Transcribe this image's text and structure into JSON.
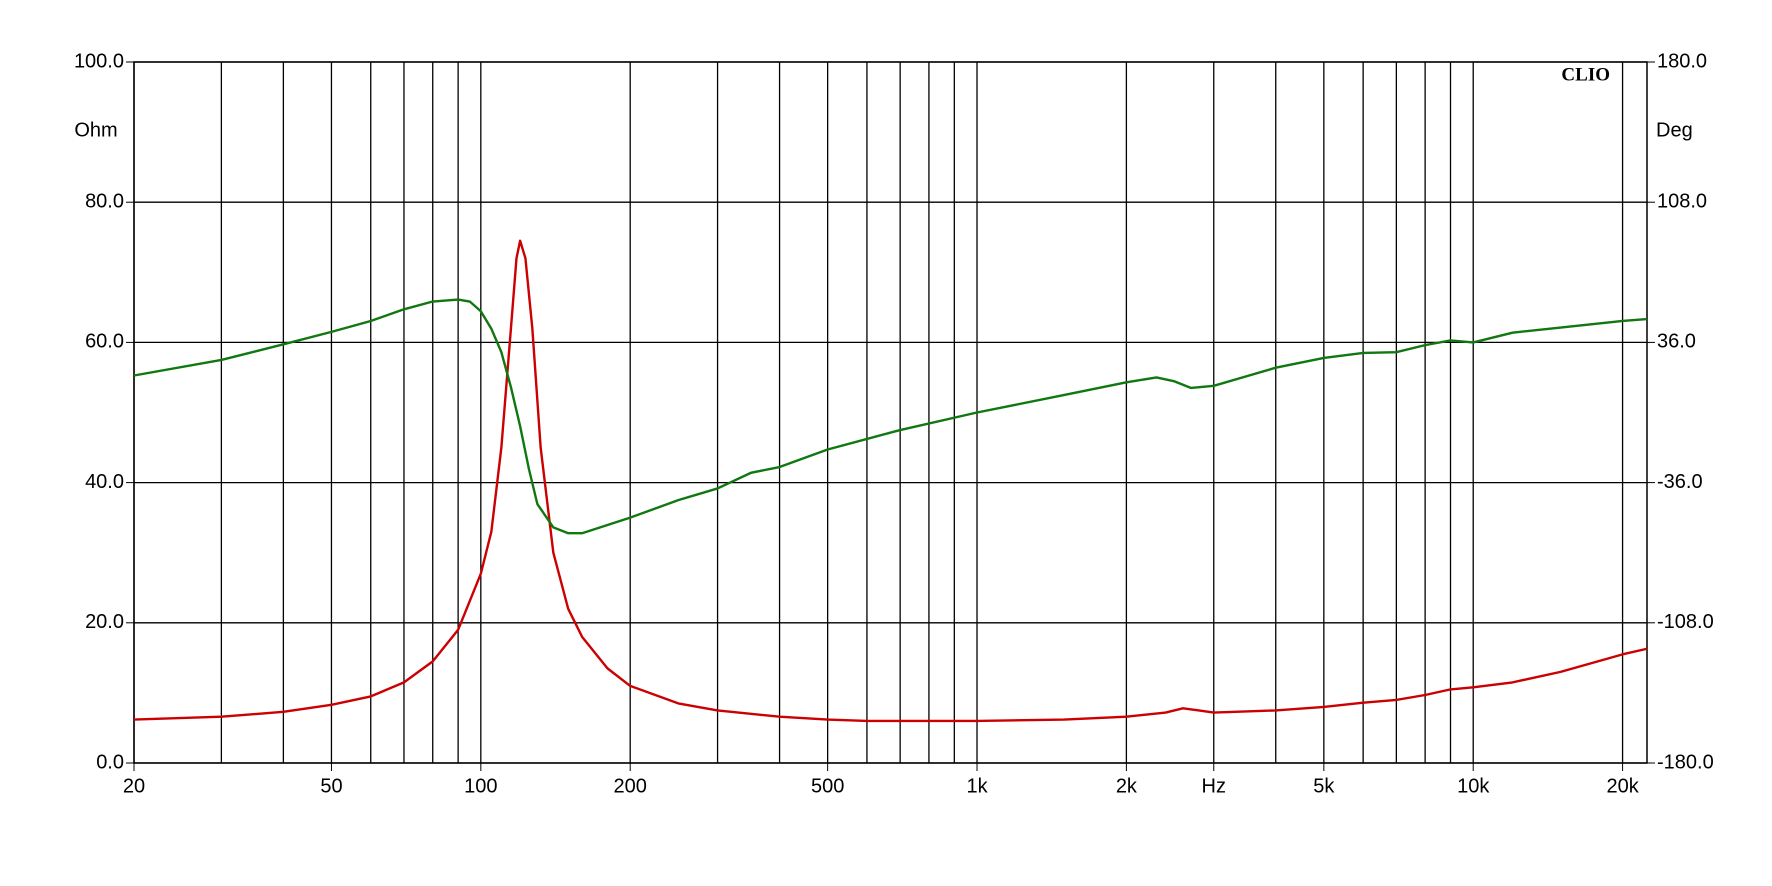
{
  "chart_data": {
    "type": "line",
    "badge": "CLIO",
    "y_label": "Ohm",
    "y2_label": "Deg",
    "xscale": "log",
    "xlim": [
      20,
      22400
    ],
    "xticks": [
      20,
      {
        "value": 50,
        "label": "50"
      },
      100,
      200,
      500,
      {
        "value": 1000,
        "label": "1k"
      },
      {
        "value": 2000,
        "label": "2k"
      },
      {
        "value": 3000,
        "label": "Hz"
      },
      {
        "value": 5000,
        "label": "5k"
      },
      {
        "value": 10000,
        "label": "10k"
      },
      {
        "value": 20000,
        "label": "20k"
      }
    ],
    "xgrid": [
      20,
      30,
      40,
      50,
      60,
      70,
      80,
      90,
      100,
      200,
      300,
      400,
      500,
      600,
      700,
      800,
      900,
      1000,
      2000,
      3000,
      4000,
      5000,
      6000,
      7000,
      8000,
      9000,
      10000,
      20000
    ],
    "ylim": [
      0,
      100
    ],
    "yticks": [
      {
        "value": 0,
        "label": "0.0"
      },
      {
        "value": 20,
        "label": "20.0"
      },
      {
        "value": 40,
        "label": "40.0"
      },
      {
        "value": 60,
        "label": "60.0"
      },
      {
        "value": 80,
        "label": "80.0"
      },
      {
        "value": 100,
        "label": "100.0"
      }
    ],
    "y2lim": [
      -180,
      180
    ],
    "y2ticks": [
      {
        "value": -180,
        "label": "-180.0"
      },
      {
        "value": -108,
        "label": "-108.0"
      },
      {
        "value": -36,
        "label": "-36.0"
      },
      {
        "value": 36,
        "label": "36.0"
      },
      {
        "value": 108,
        "label": "108.0"
      },
      {
        "value": 180,
        "label": "180.0"
      }
    ],
    "grid": true,
    "series": [
      {
        "color": "#cc0000",
        "x": [
          20,
          30,
          40,
          50,
          60,
          70,
          80,
          90,
          100,
          105,
          110,
          115,
          118,
          120,
          123,
          127,
          132,
          140,
          150,
          160,
          180,
          200,
          250,
          300,
          400,
          500,
          600,
          800,
          1000,
          1500,
          2000,
          2400,
          2600,
          2800,
          3000,
          4000,
          5000,
          6000,
          7000,
          8000,
          9000,
          10000,
          12000,
          15000,
          20000,
          22400
        ],
        "values": [
          6.2,
          6.6,
          7.3,
          8.3,
          9.5,
          11.5,
          14.5,
          19,
          27,
          33,
          45,
          62,
          72,
          74.5,
          72,
          62,
          45,
          30,
          22,
          18,
          13.5,
          11,
          8.5,
          7.5,
          6.6,
          6.2,
          6.0,
          6.0,
          6.0,
          6.2,
          6.6,
          7.2,
          7.8,
          7.5,
          7.2,
          7.5,
          8.0,
          8.6,
          9.0,
          9.7,
          10.5,
          10.8,
          11.5,
          13,
          15.5,
          16.3
        ]
      },
      {
        "color": "#117711",
        "axis": "y2",
        "x": [
          20,
          30,
          40,
          50,
          60,
          70,
          80,
          90,
          95,
          100,
          105,
          110,
          115,
          120,
          125,
          130,
          140,
          150,
          160,
          200,
          250,
          300,
          350,
          400,
          500,
          700,
          1000,
          1500,
          2000,
          2300,
          2500,
          2700,
          3000,
          4000,
          5000,
          6000,
          7000,
          8000,
          9000,
          10000,
          12000,
          15000,
          20000,
          22400
        ],
        "values": [
          19,
          27,
          35,
          41.4,
          47,
          53,
          57,
          58,
          57,
          52,
          43,
          31,
          13,
          -7,
          -29,
          -47,
          -59,
          -62,
          -62,
          -54,
          -45,
          -39,
          -31,
          -28,
          -19,
          -9,
          0,
          9,
          15.5,
          18,
          16,
          12.6,
          13.7,
          23,
          28,
          30.6,
          31,
          34.6,
          37,
          36,
          41,
          43.6,
          47,
          48
        ]
      }
    ]
  }
}
